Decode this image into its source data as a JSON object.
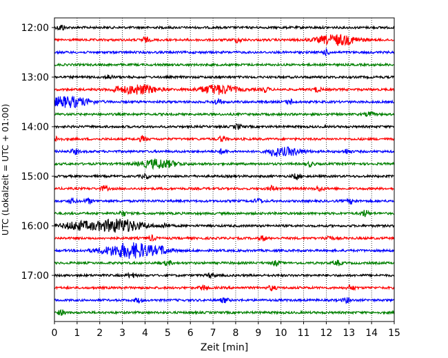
{
  "chart_data": {
    "type": "line",
    "title": "",
    "xlabel": "Zeit  [min]",
    "ylabel": "UTC (Lokalzeit = UTC + 01:00)",
    "xlim": [
      0,
      15
    ],
    "x_ticks": [
      "0",
      "1",
      "2",
      "3",
      "4",
      "5",
      "6",
      "7",
      "8",
      "9",
      "10",
      "11",
      "12",
      "13",
      "14",
      "15"
    ],
    "y_ticks": [
      "12:00",
      "13:00",
      "14:00",
      "15:00",
      "16:00",
      "17:00"
    ],
    "grid": "vertical-dotted",
    "trace_colors": [
      "#000000",
      "#ff0000",
      "#0000ff",
      "#008000"
    ],
    "traces": [
      {
        "start": "12:00",
        "color": "#000000",
        "events": [
          [
            0.3,
            1.3
          ]
        ]
      },
      {
        "start": "12:15",
        "color": "#ff0000",
        "events": [
          [
            4.0,
            1.1
          ],
          [
            8.1,
            1.0
          ],
          [
            12.5,
            2.2
          ]
        ]
      },
      {
        "start": "12:30",
        "color": "#0000ff",
        "events": [
          [
            12.0,
            1.0
          ]
        ]
      },
      {
        "start": "12:45",
        "color": "#008000",
        "events": []
      },
      {
        "start": "13:00",
        "color": "#000000",
        "events": [
          [
            2.4,
            0.9
          ]
        ]
      },
      {
        "start": "13:15",
        "color": "#ff0000",
        "events": [
          [
            2.7,
            0.9
          ],
          [
            3.7,
            2.0
          ],
          [
            7.2,
            2.0
          ],
          [
            9.3,
            1.0
          ],
          [
            11.6,
            1.0
          ]
        ]
      },
      {
        "start": "13:30",
        "color": "#0000ff",
        "events": [
          [
            0.6,
            2.3
          ],
          [
            7.2,
            1.2
          ],
          [
            10.4,
            1.0
          ]
        ]
      },
      {
        "start": "13:45",
        "color": "#008000",
        "events": [
          [
            13.9,
            1.0
          ]
        ]
      },
      {
        "start": "14:00",
        "color": "#000000",
        "events": [
          [
            8.1,
            1.0
          ]
        ]
      },
      {
        "start": "14:15",
        "color": "#ff0000",
        "events": [
          [
            0.1,
            0.9
          ],
          [
            3.9,
            1.1
          ],
          [
            7.4,
            1.1
          ]
        ]
      },
      {
        "start": "14:30",
        "color": "#0000ff",
        "events": [
          [
            0.9,
            1.0
          ],
          [
            7.4,
            1.0
          ],
          [
            9.7,
            1.5
          ],
          [
            10.3,
            1.6
          ],
          [
            12.9,
            1.0
          ]
        ]
      },
      {
        "start": "14:45",
        "color": "#008000",
        "events": [
          [
            4.6,
            1.9
          ],
          [
            11.3,
            0.9
          ]
        ]
      },
      {
        "start": "15:00",
        "color": "#000000",
        "events": [
          [
            4.0,
            0.9
          ],
          [
            10.7,
            1.2
          ]
        ]
      },
      {
        "start": "15:15",
        "color": "#ff0000",
        "events": [
          [
            2.2,
            1.0
          ],
          [
            9.6,
            1.1
          ],
          [
            11.7,
            1.0
          ]
        ]
      },
      {
        "start": "15:30",
        "color": "#0000ff",
        "events": [
          [
            0.8,
            1.0
          ],
          [
            1.5,
            1.0
          ],
          [
            9.0,
            1.0
          ],
          [
            13.1,
            1.0
          ]
        ]
      },
      {
        "start": "15:45",
        "color": "#008000",
        "events": [
          [
            3.0,
            1.1
          ],
          [
            13.7,
            1.3
          ]
        ]
      },
      {
        "start": "16:00",
        "color": "#000000",
        "events": [
          [
            1.0,
            1.6
          ],
          [
            2.8,
            2.8
          ],
          [
            4.9,
            1.0
          ]
        ]
      },
      {
        "start": "16:15",
        "color": "#ff0000",
        "events": [
          [
            4.3,
            1.0
          ],
          [
            9.2,
            1.0
          ],
          [
            12.1,
            1.0
          ]
        ]
      },
      {
        "start": "16:30",
        "color": "#0000ff",
        "events": [
          [
            3.4,
            3.2
          ],
          [
            4.8,
            1.0
          ]
        ]
      },
      {
        "start": "16:45",
        "color": "#008000",
        "events": [
          [
            5.0,
            0.9
          ],
          [
            9.8,
            1.0
          ],
          [
            12.5,
            1.0
          ]
        ]
      },
      {
        "start": "17:00",
        "color": "#000000",
        "events": [
          [
            3.4,
            1.0
          ],
          [
            6.9,
            0.9
          ]
        ]
      },
      {
        "start": "17:15",
        "color": "#ff0000",
        "events": [
          [
            6.6,
            1.1
          ],
          [
            9.6,
            1.0
          ],
          [
            13.1,
            1.0
          ]
        ]
      },
      {
        "start": "17:30",
        "color": "#0000ff",
        "events": [
          [
            3.7,
            1.0
          ],
          [
            7.5,
            1.0
          ],
          [
            12.9,
            1.0
          ]
        ]
      },
      {
        "start": "17:45",
        "color": "#008000",
        "events": [
          [
            0.3,
            1.0
          ]
        ]
      }
    ]
  }
}
